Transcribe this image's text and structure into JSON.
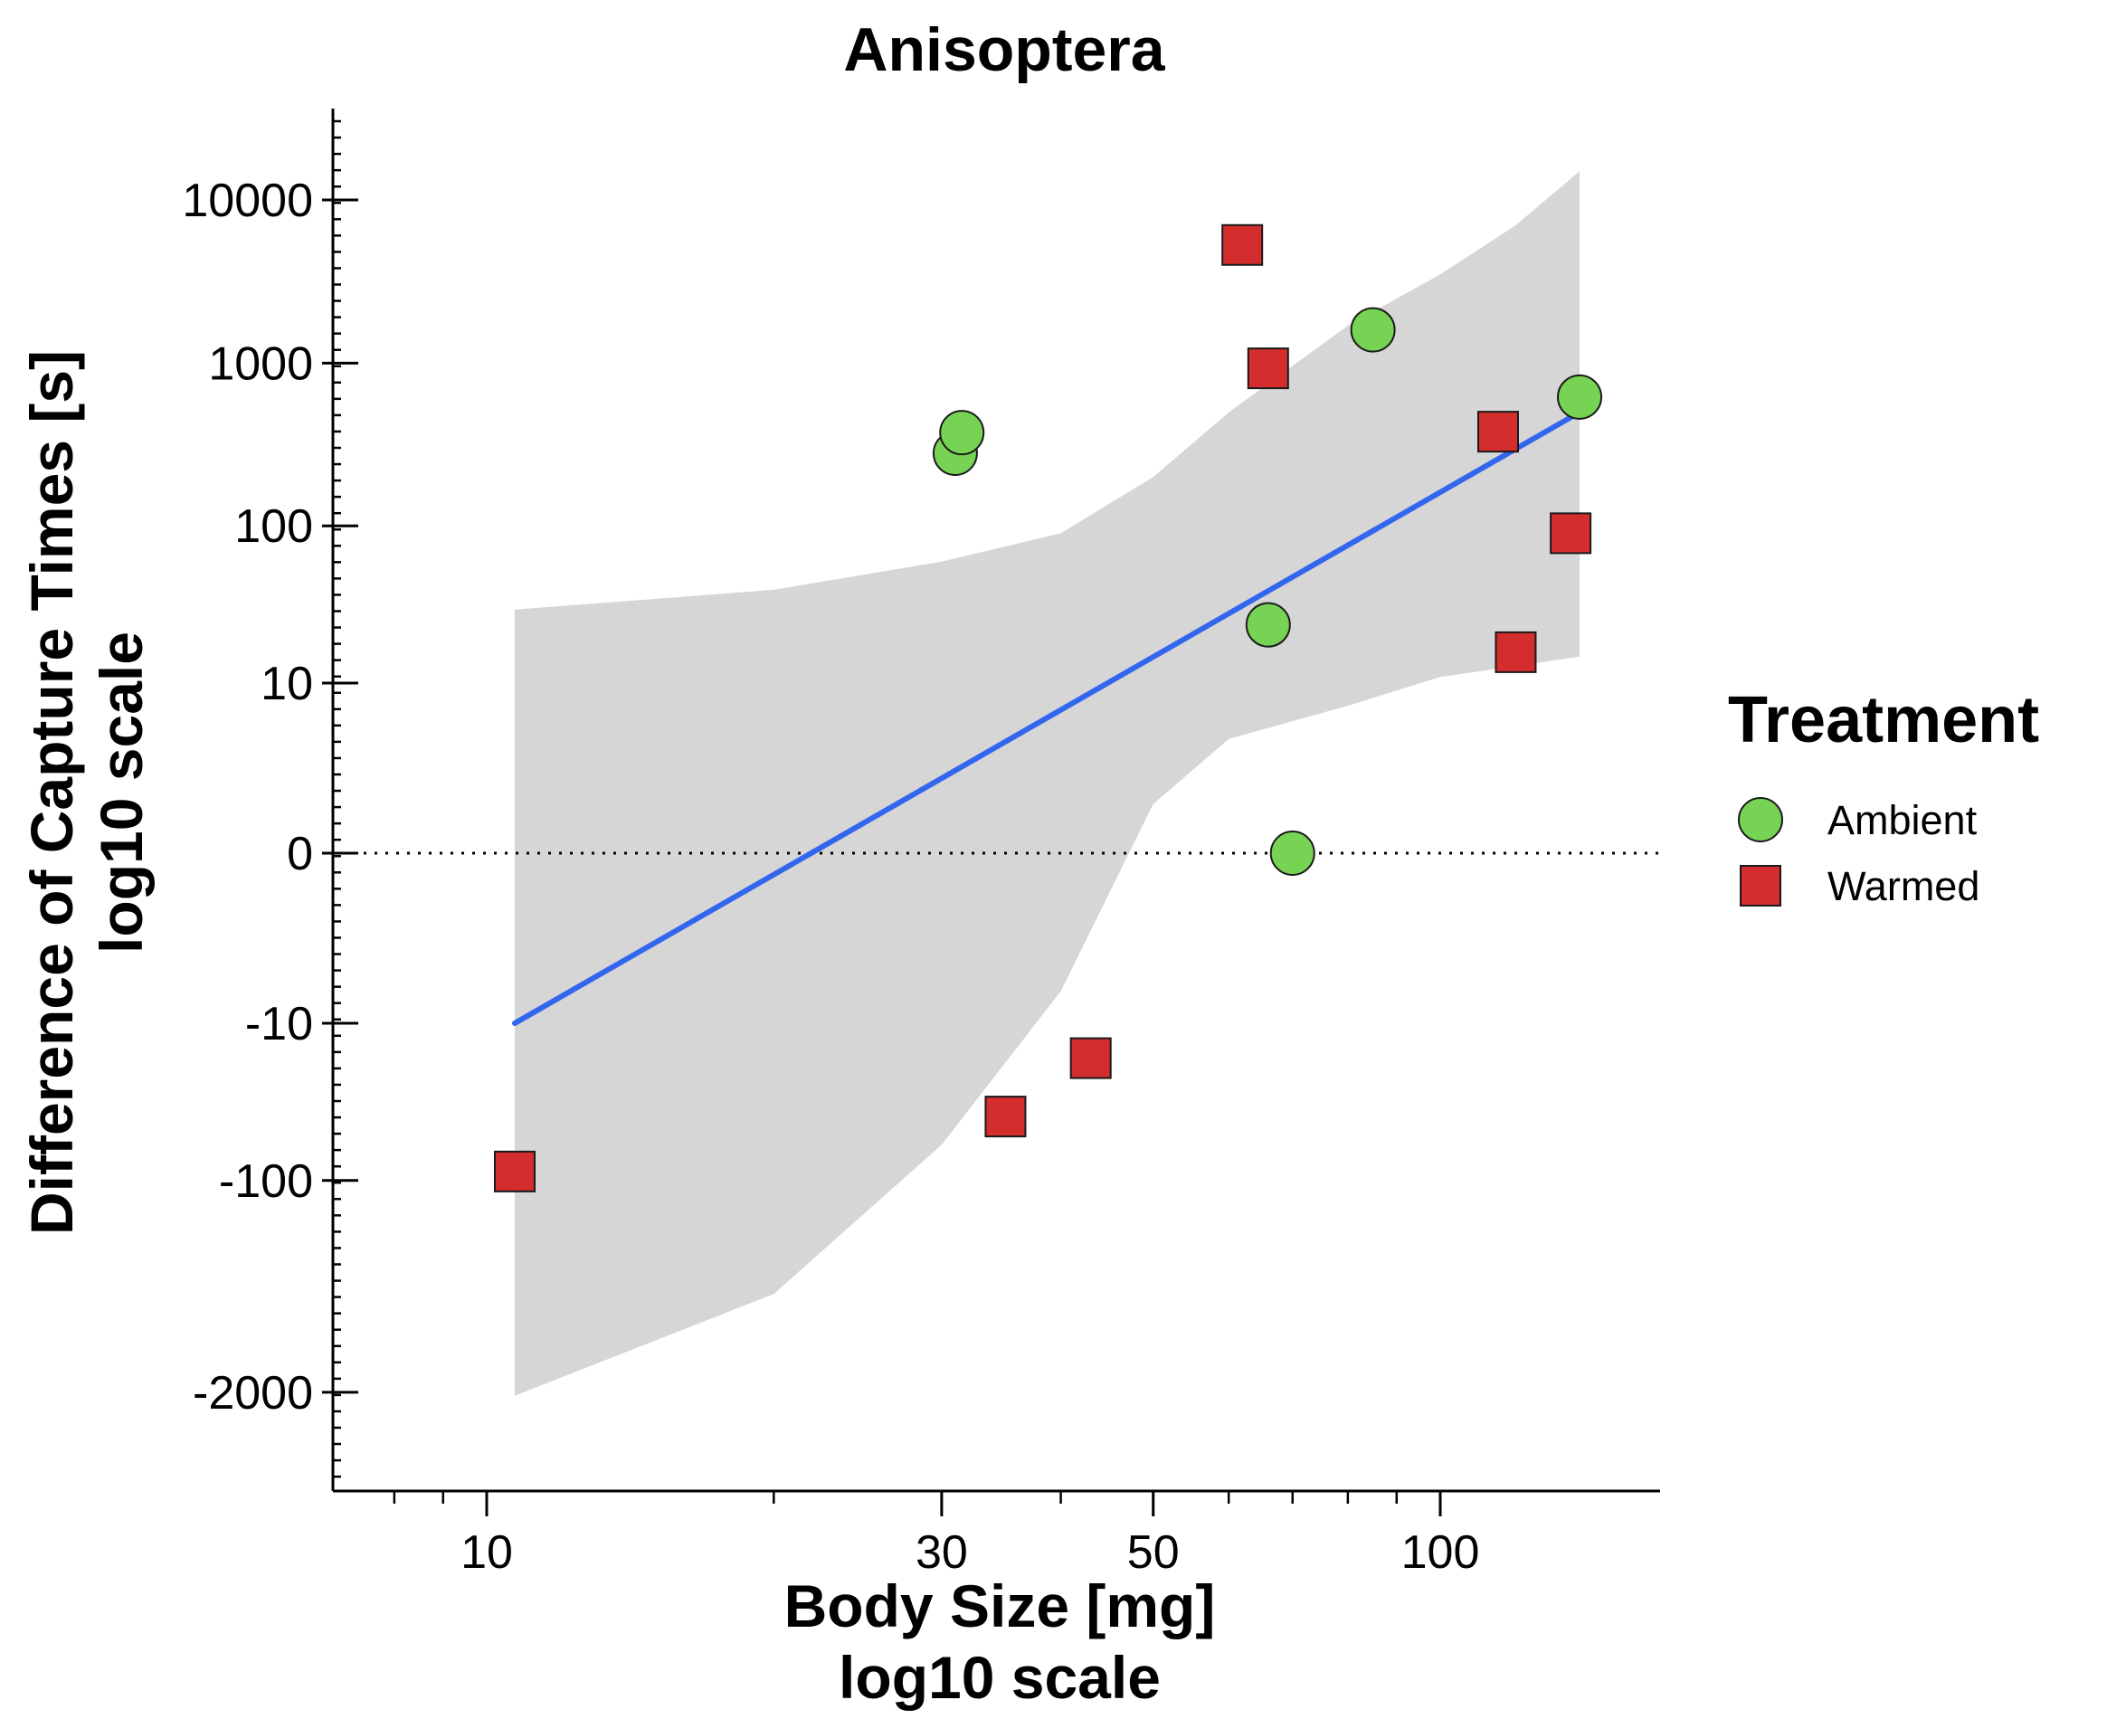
{
  "chart_data": {
    "type": "scatter",
    "title": "Anisoptera",
    "xlabel": [
      "Body Size [mg]",
      "log10 scale"
    ],
    "ylabel": [
      "Difference of Capture Times [s]",
      "log10 scale"
    ],
    "x_scale": "log10",
    "y_scale": "signed log10",
    "x_ticks": [
      10,
      30,
      50,
      100
    ],
    "x_tick_labels": [
      "10",
      "30",
      "50",
      "100"
    ],
    "y_ticks": [
      -2000,
      -100,
      -10,
      0,
      10,
      100,
      1000,
      10000
    ],
    "y_tick_labels": [
      "-2000",
      "-100",
      "-10",
      "0",
      "10",
      "100",
      "1000",
      "10000"
    ],
    "xlim": [
      8,
      180
    ],
    "reference_line": {
      "y": 0,
      "style": "dotted"
    },
    "legend": {
      "title": "Treatment",
      "position": "right"
    },
    "series": [
      {
        "name": "Ambient",
        "marker": "circle",
        "color": "#77d353",
        "points": [
          {
            "x": 31,
            "y": 280
          },
          {
            "x": 31.5,
            "y": 375
          },
          {
            "x": 66,
            "y": 24
          },
          {
            "x": 70,
            "y": 0
          },
          {
            "x": 85,
            "y": 1600
          },
          {
            "x": 140,
            "y": 620
          }
        ]
      },
      {
        "name": "Warmed",
        "marker": "square",
        "color": "#d32d2d",
        "points": [
          {
            "x": 10.7,
            "y": -88
          },
          {
            "x": 35,
            "y": -40
          },
          {
            "x": 43,
            "y": -17
          },
          {
            "x": 62,
            "y": 5300
          },
          {
            "x": 66,
            "y": 930
          },
          {
            "x": 115,
            "y": 380
          },
          {
            "x": 120,
            "y": 16
          },
          {
            "x": 137,
            "y": 90
          }
        ]
      }
    ],
    "fit_line": {
      "color": "#3366ee",
      "points": [
        {
          "x": 10.7,
          "y": -10
        },
        {
          "x": 140,
          "y": 500
        }
      ]
    },
    "confidence_band": {
      "color": "#d6d6d6",
      "upper": [
        {
          "x": 10.7,
          "y": 30
        },
        {
          "x": 20,
          "y": 40
        },
        {
          "x": 30,
          "y": 60
        },
        {
          "x": 40,
          "y": 90
        },
        {
          "x": 50,
          "y": 200
        },
        {
          "x": 60,
          "y": 500
        },
        {
          "x": 80,
          "y": 1700
        },
        {
          "x": 100,
          "y": 3500
        },
        {
          "x": 120,
          "y": 7000
        },
        {
          "x": 140,
          "y": 15000
        }
      ],
      "lower": [
        {
          "x": 10.7,
          "y": -2100
        },
        {
          "x": 20,
          "y": -500
        },
        {
          "x": 30,
          "y": -60
        },
        {
          "x": 40,
          "y": -6
        },
        {
          "x": 50,
          "y": 1
        },
        {
          "x": 60,
          "y": 4
        },
        {
          "x": 80,
          "y": 7
        },
        {
          "x": 100,
          "y": 11
        },
        {
          "x": 120,
          "y": 13
        },
        {
          "x": 140,
          "y": 15
        }
      ]
    }
  }
}
